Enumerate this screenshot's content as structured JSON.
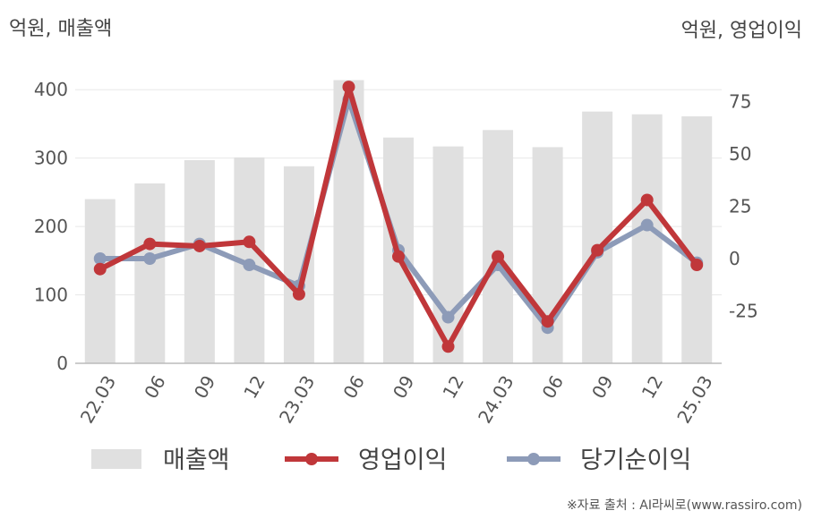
{
  "chart_data": {
    "type": "bar",
    "left_unit_label": "억원, 매출액",
    "right_unit_label": "억원, 영업이익",
    "categories": [
      "22.03",
      "06",
      "09",
      "12",
      "23.03",
      "06",
      "09",
      "12",
      "24.03",
      "06",
      "09",
      "12",
      "25.03"
    ],
    "left_axis": {
      "ylim": [
        0,
        450
      ],
      "ticks": [
        0,
        100,
        200,
        300,
        400
      ]
    },
    "right_axis": {
      "ylim": [
        -50,
        97
      ],
      "ticks": [
        -25,
        0,
        25,
        50,
        75
      ]
    },
    "series": [
      {
        "name": "매출액",
        "kind": "bar",
        "axis": "left",
        "color": "#e0e0e0",
        "values": [
          240,
          263,
          297,
          301,
          288,
          414,
          330,
          317,
          341,
          316,
          368,
          364,
          361
        ]
      },
      {
        "name": "영업이익",
        "kind": "line",
        "axis": "right",
        "color": "#c0373a",
        "values": [
          -5,
          7,
          6,
          8,
          -17,
          82,
          1,
          -42,
          1,
          -30,
          4,
          28,
          -3
        ]
      },
      {
        "name": "당기순이익",
        "kind": "line",
        "axis": "right",
        "color": "#8d9bb8",
        "values": [
          0,
          0,
          7,
          -3,
          -13,
          76,
          4,
          -28,
          -3,
          -33,
          3,
          16,
          -2
        ]
      }
    ],
    "grid": true,
    "legend_position": "bottom"
  },
  "source": "※자료 출처 : AI라씨로(www.rassiro.com)"
}
